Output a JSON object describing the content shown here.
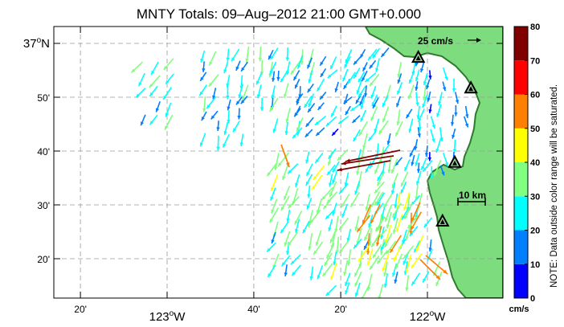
{
  "title": "MNTY Totals: 09–Aug–2012 21:00 GMT+0.000",
  "x_ticks": [
    {
      "lon": -123.333,
      "text": "20'",
      "minor": true
    },
    {
      "lon": -123.0,
      "deg": "123",
      "hemi": "W",
      "minor": false
    },
    {
      "lon": -122.667,
      "text": "40'",
      "minor": true
    },
    {
      "lon": -122.333,
      "text": "20'",
      "minor": true
    },
    {
      "lon": -122.0,
      "deg": "122",
      "hemi": "W",
      "minor": false
    }
  ],
  "y_ticks": [
    {
      "lat": 37.0,
      "deg": "37",
      "hemi": "N",
      "minor": false
    },
    {
      "lat": 36.8333,
      "text": "50'",
      "minor": true
    },
    {
      "lat": 36.6667,
      "text": "40'",
      "minor": true
    },
    {
      "lat": 36.5,
      "text": "30'",
      "minor": true
    },
    {
      "lat": 36.3333,
      "text": "20'",
      "minor": true
    }
  ],
  "speed_scale_label": "25 cm/s",
  "distance_scale_label": "10 km",
  "colorbar": {
    "ticks": [
      "0",
      "10",
      "20",
      "30",
      "40",
      "50",
      "60",
      "70",
      "80"
    ],
    "unit": "cm/s",
    "note": "NOTE: Data outside color range will be saturated.",
    "colors": [
      "#0000ff",
      "#0080ff",
      "#00ffff",
      "#80ff80",
      "#ffff00",
      "#ff8000",
      "#ff0000",
      "#800000"
    ]
  },
  "colors": {
    "land": "#7ddc7d",
    "shore": "#2e7a2e",
    "grid": "#9a9a9a"
  },
  "stations": [
    {
      "name": "station-1",
      "lon": -122.035,
      "lat": 36.955
    },
    {
      "name": "station-2",
      "lon": -121.833,
      "lat": 36.86
    },
    {
      "name": "station-3",
      "lon": -121.895,
      "lat": 36.63
    },
    {
      "name": "station-4",
      "lon": -121.942,
      "lat": 36.448
    }
  ]
}
